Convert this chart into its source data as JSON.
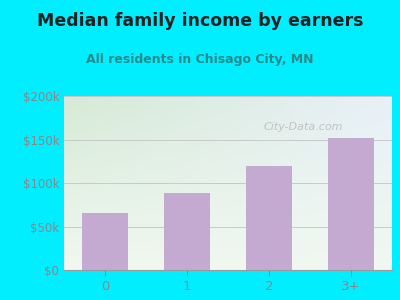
{
  "title": "Median family income by earners",
  "subtitle": "All residents in Chisago City, MN",
  "categories": [
    "0",
    "1",
    "2",
    "3+"
  ],
  "values": [
    65000,
    88000,
    120000,
    152000
  ],
  "bar_color": "#c4aad0",
  "ylim": [
    0,
    200000
  ],
  "yticks": [
    0,
    50000,
    100000,
    150000,
    200000
  ],
  "ytick_labels": [
    "$0",
    "$50k",
    "$100k",
    "$150k",
    "$200k"
  ],
  "background_outer": "#00eeff",
  "background_inner_topleft": "#d6ead6",
  "background_inner_topright": "#e8f0f8",
  "background_inner_bottom": "#f0f8f0",
  "title_color": "#222222",
  "subtitle_color": "#2a8a8a",
  "tick_color": "#888888",
  "grid_color": "#bbbbbb",
  "watermark": "City-Data.com"
}
